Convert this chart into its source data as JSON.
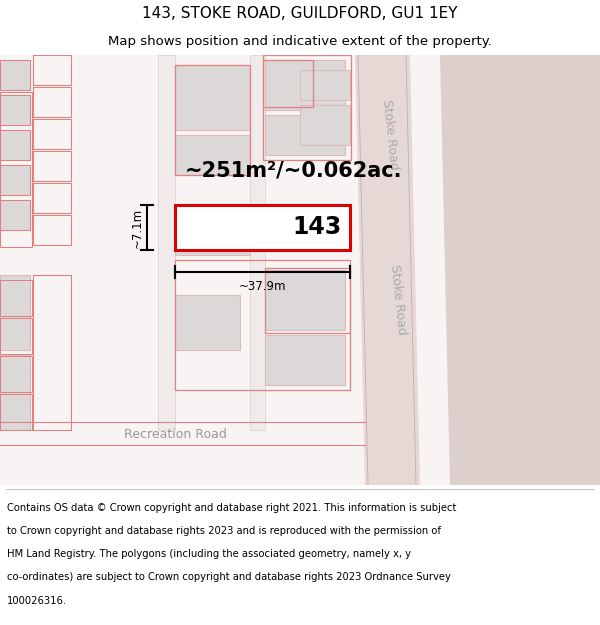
{
  "title": "143, STOKE ROAD, GUILDFORD, GU1 1EY",
  "subtitle": "Map shows position and indicative extent of the property.",
  "footer_lines": [
    "Contains OS data © Crown copyright and database right 2021. This information is subject",
    "to Crown copyright and database rights 2023 and is reproduced with the permission of",
    "HM Land Registry. The polygons (including the associated geometry, namely x, y",
    "co-ordinates) are subject to Crown copyright and database rights 2023 Ordnance Survey",
    "100026316."
  ],
  "map_bg": "#f7f2f2",
  "road_right_bg": "#e8dada",
  "road_far_right_bg": "#ddd0cc",
  "building_fill": "#ddd8d8",
  "building_edge_color": "#ddbbbb",
  "red_outline_color": "#e08080",
  "highlight_fill": "#ffffff",
  "highlight_edge": "#dd0000",
  "dim_color": "#222222",
  "area_label": "~251m²/~0.062ac.",
  "property_label": "143",
  "width_label": "~37.9m",
  "height_label": "~7.1m",
  "road_label": "Stoke Road",
  "road_label2": "Stoke Road",
  "rec_road_label": "Recreation Road",
  "title_fontsize": 11,
  "subtitle_fontsize": 9.5,
  "footer_fontsize": 7.2
}
